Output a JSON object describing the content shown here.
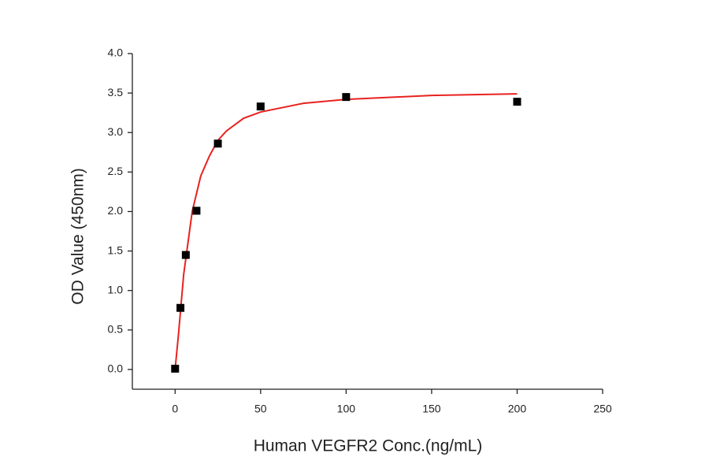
{
  "chart_data": {
    "type": "scatter",
    "xlabel": "Human VEGFR2 Conc.(ng/mL)",
    "ylabel": "OD Value (450nm)",
    "x": [
      0,
      3.125,
      6.25,
      12.5,
      25,
      50,
      100,
      200
    ],
    "values": [
      0.01,
      0.78,
      1.45,
      2.01,
      2.86,
      3.33,
      3.45,
      3.39
    ],
    "color": "#000000",
    "fit": {
      "x": [
        0,
        2,
        5,
        10,
        15,
        20,
        25,
        30,
        40,
        50,
        75,
        100,
        150,
        200
      ],
      "values": [
        0,
        0.45,
        1.2,
        2.0,
        2.45,
        2.7,
        2.9,
        3.02,
        3.18,
        3.26,
        3.37,
        3.42,
        3.47,
        3.49
      ],
      "color": "#e8221f"
    },
    "xlim": [
      -25,
      250
    ],
    "xticks": [
      0,
      50,
      100,
      150,
      200,
      250
    ],
    "ylim": [
      -0.25,
      4.0
    ],
    "yticks": [
      {
        "value": 0,
        "label": "0.0"
      },
      0.5,
      {
        "value": 1,
        "label": "1.0"
      },
      1.5,
      {
        "value": 2,
        "label": "2.0"
      },
      2.5,
      {
        "value": 3,
        "label": "3.0"
      },
      3.5,
      {
        "value": 4,
        "label": "4.0"
      }
    ],
    "grid": false
  }
}
